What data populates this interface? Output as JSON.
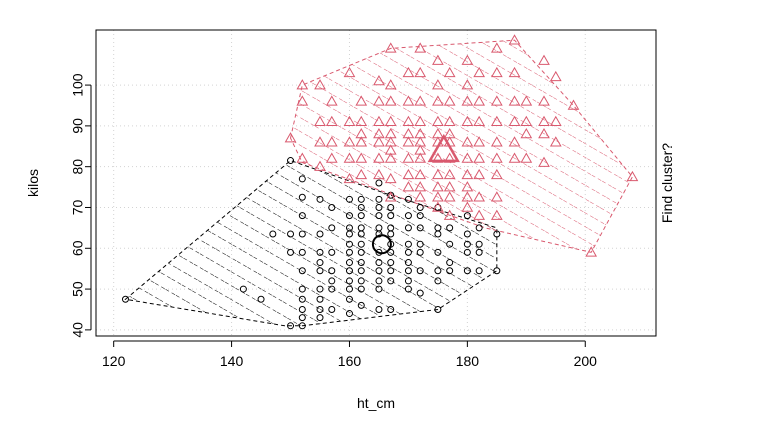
{
  "chart_data": {
    "type": "scatter",
    "title": "",
    "xlabel": "ht_cm",
    "ylabel": "kilos",
    "side_label": "Find cluster?",
    "xlim": [
      117,
      212
    ],
    "ylim": [
      38.5,
      113.5
    ],
    "xticks": [
      120,
      140,
      160,
      180,
      200
    ],
    "yticks": [
      40,
      50,
      60,
      70,
      80,
      90,
      100
    ],
    "grid": true,
    "series": [
      {
        "marker": "circle",
        "color": "#000000",
        "hull": [
          [
            122,
            47.5
          ],
          [
            150,
            81.5
          ],
          [
            167,
            73
          ],
          [
            185,
            65
          ],
          [
            185,
            54.5
          ],
          [
            175,
            45
          ],
          [
            152,
            41
          ],
          [
            149,
            41
          ]
        ],
        "centroid": [
          165.5,
          61
        ],
        "points": [
          [
            122,
            47.5
          ],
          [
            142,
            50
          ],
          [
            145,
            47.5
          ],
          [
            147,
            63.5
          ],
          [
            150,
            81.5
          ],
          [
            150,
            59
          ],
          [
            150,
            63.5
          ],
          [
            150,
            41
          ],
          [
            152,
            77
          ],
          [
            152,
            72.5
          ],
          [
            152,
            68
          ],
          [
            152,
            63.5
          ],
          [
            152,
            59
          ],
          [
            152,
            54.5
          ],
          [
            152,
            50
          ],
          [
            152,
            47.5
          ],
          [
            152,
            45
          ],
          [
            152,
            43
          ],
          [
            152,
            41
          ],
          [
            155,
            72
          ],
          [
            155,
            63.5
          ],
          [
            155,
            59
          ],
          [
            155,
            56.5
          ],
          [
            155,
            54.5
          ],
          [
            155,
            50
          ],
          [
            155,
            47.5
          ],
          [
            155,
            45
          ],
          [
            155,
            43
          ],
          [
            157,
            70
          ],
          [
            157,
            65
          ],
          [
            157,
            59
          ],
          [
            157,
            54.5
          ],
          [
            157,
            52
          ],
          [
            157,
            50
          ],
          [
            157,
            45
          ],
          [
            160,
            72
          ],
          [
            160,
            68
          ],
          [
            160,
            65
          ],
          [
            160,
            63.5
          ],
          [
            160,
            61
          ],
          [
            160,
            59
          ],
          [
            160,
            56.5
          ],
          [
            160,
            54.5
          ],
          [
            160,
            52
          ],
          [
            160,
            50
          ],
          [
            160,
            47.5
          ],
          [
            160,
            44
          ],
          [
            162,
            72
          ],
          [
            162,
            70
          ],
          [
            162,
            68
          ],
          [
            162,
            65
          ],
          [
            162,
            63.5
          ],
          [
            162,
            61
          ],
          [
            162,
            59
          ],
          [
            162,
            56.5
          ],
          [
            162,
            54.5
          ],
          [
            162,
            52
          ],
          [
            162,
            50
          ],
          [
            162,
            46
          ],
          [
            165,
            76
          ],
          [
            165,
            72
          ],
          [
            165,
            70
          ],
          [
            165,
            68
          ],
          [
            165,
            65
          ],
          [
            165,
            63.5
          ],
          [
            165,
            59
          ],
          [
            165,
            56.5
          ],
          [
            165,
            54.5
          ],
          [
            165,
            52
          ],
          [
            165,
            50
          ],
          [
            165,
            45
          ],
          [
            167,
            73
          ],
          [
            167,
            70
          ],
          [
            167,
            68
          ],
          [
            167,
            65
          ],
          [
            167,
            63.5
          ],
          [
            167,
            61
          ],
          [
            167,
            59
          ],
          [
            167,
            56.5
          ],
          [
            167,
            54.5
          ],
          [
            167,
            52
          ],
          [
            167,
            45
          ],
          [
            170,
            72
          ],
          [
            170,
            68
          ],
          [
            170,
            65
          ],
          [
            170,
            61
          ],
          [
            170,
            59
          ],
          [
            170,
            56.5
          ],
          [
            170,
            54.5
          ],
          [
            170,
            52
          ],
          [
            170,
            50
          ],
          [
            172,
            70
          ],
          [
            172,
            68
          ],
          [
            172,
            65
          ],
          [
            172,
            61
          ],
          [
            172,
            59
          ],
          [
            172,
            54.5
          ],
          [
            172,
            49
          ],
          [
            175,
            70
          ],
          [
            175,
            65
          ],
          [
            175,
            63.5
          ],
          [
            175,
            59
          ],
          [
            175,
            54.5
          ],
          [
            175,
            52
          ],
          [
            175,
            45
          ],
          [
            177,
            65
          ],
          [
            177,
            61
          ],
          [
            177,
            56.5
          ],
          [
            177,
            54.5
          ],
          [
            180,
            68
          ],
          [
            180,
            63.5
          ],
          [
            180,
            61
          ],
          [
            180,
            59
          ],
          [
            180,
            54.5
          ],
          [
            182,
            65
          ],
          [
            182,
            61
          ],
          [
            182,
            59
          ],
          [
            182,
            54.5
          ],
          [
            185,
            63.5
          ],
          [
            185,
            54.5
          ]
        ]
      },
      {
        "marker": "triangle",
        "color": "#d9596e",
        "hull": [
          [
            150,
            87
          ],
          [
            152,
            100
          ],
          [
            167,
            109
          ],
          [
            188,
            111
          ],
          [
            198,
            95
          ],
          [
            208,
            77.5
          ],
          [
            201,
            59
          ],
          [
            183,
            65
          ],
          [
            152,
            81
          ]
        ],
        "centroid": [
          176,
          84
        ],
        "points": [
          [
            150,
            87
          ],
          [
            152,
            100
          ],
          [
            152,
            96
          ],
          [
            152,
            82
          ],
          [
            155,
            100
          ],
          [
            155,
            91
          ],
          [
            155,
            86
          ],
          [
            155,
            80
          ],
          [
            157,
            96
          ],
          [
            157,
            91
          ],
          [
            157,
            86
          ],
          [
            157,
            82
          ],
          [
            160,
            103
          ],
          [
            160,
            91
          ],
          [
            160,
            86
          ],
          [
            160,
            82
          ],
          [
            160,
            77
          ],
          [
            162,
            96
          ],
          [
            162,
            91
          ],
          [
            162,
            88
          ],
          [
            162,
            86
          ],
          [
            162,
            82
          ],
          [
            162,
            78
          ],
          [
            165,
            101
          ],
          [
            165,
            96
          ],
          [
            165,
            91
          ],
          [
            165,
            88
          ],
          [
            165,
            86
          ],
          [
            165,
            82
          ],
          [
            165,
            78
          ],
          [
            167,
            109
          ],
          [
            167,
            100
          ],
          [
            167,
            96
          ],
          [
            167,
            91
          ],
          [
            167,
            88
          ],
          [
            167,
            86
          ],
          [
            167,
            84
          ],
          [
            167,
            82
          ],
          [
            167,
            77
          ],
          [
            167,
            72.5
          ],
          [
            170,
            103
          ],
          [
            170,
            96
          ],
          [
            170,
            91
          ],
          [
            170,
            88
          ],
          [
            170,
            86
          ],
          [
            170,
            82
          ],
          [
            170,
            78
          ],
          [
            170,
            75
          ],
          [
            172,
            109
          ],
          [
            172,
            103
          ],
          [
            172,
            96
          ],
          [
            172,
            91
          ],
          [
            172,
            88
          ],
          [
            172,
            86
          ],
          [
            172,
            84
          ],
          [
            172,
            82
          ],
          [
            172,
            78
          ],
          [
            172,
            75
          ],
          [
            172,
            72.5
          ],
          [
            175,
            106
          ],
          [
            175,
            100
          ],
          [
            175,
            96
          ],
          [
            175,
            91
          ],
          [
            175,
            88
          ],
          [
            175,
            86
          ],
          [
            175,
            82
          ],
          [
            175,
            78
          ],
          [
            175,
            75
          ],
          [
            175,
            72.5
          ],
          [
            175,
            70
          ],
          [
            177,
            103
          ],
          [
            177,
            96
          ],
          [
            177,
            91
          ],
          [
            177,
            88
          ],
          [
            177,
            86
          ],
          [
            177,
            82
          ],
          [
            177,
            78
          ],
          [
            177,
            75
          ],
          [
            177,
            72.5
          ],
          [
            177,
            68
          ],
          [
            180,
            106
          ],
          [
            180,
            100
          ],
          [
            180,
            96
          ],
          [
            180,
            91
          ],
          [
            180,
            86
          ],
          [
            180,
            82
          ],
          [
            180,
            78
          ],
          [
            180,
            75
          ],
          [
            180,
            72.5
          ],
          [
            180,
            70
          ],
          [
            182,
            103
          ],
          [
            182,
            96
          ],
          [
            182,
            91
          ],
          [
            182,
            86
          ],
          [
            182,
            82
          ],
          [
            182,
            78
          ],
          [
            182,
            72.5
          ],
          [
            182,
            68
          ],
          [
            185,
            109
          ],
          [
            185,
            103
          ],
          [
            185,
            96
          ],
          [
            185,
            91
          ],
          [
            185,
            86
          ],
          [
            185,
            82
          ],
          [
            185,
            78
          ],
          [
            185,
            72.5
          ],
          [
            185,
            68
          ],
          [
            188,
            111
          ],
          [
            188,
            103
          ],
          [
            188,
            96
          ],
          [
            188,
            91
          ],
          [
            188,
            86
          ],
          [
            188,
            82
          ],
          [
            190,
            96
          ],
          [
            190,
            91
          ],
          [
            190,
            88
          ],
          [
            190,
            82
          ],
          [
            193,
            106
          ],
          [
            193,
            96
          ],
          [
            193,
            91
          ],
          [
            193,
            88
          ],
          [
            193,
            81
          ],
          [
            195,
            102
          ],
          [
            195,
            91
          ],
          [
            195,
            86
          ],
          [
            198,
            95
          ],
          [
            201,
            59
          ],
          [
            208,
            77.5
          ]
        ]
      }
    ]
  }
}
